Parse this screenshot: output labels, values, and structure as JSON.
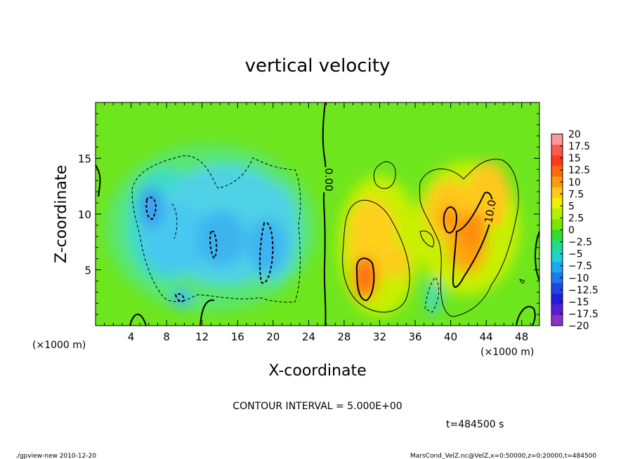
{
  "chart_data": {
    "type": "heatmap",
    "title": "vertical velocity",
    "xlabel": "X-coordinate",
    "ylabel": "Z-coordinate",
    "x_unit": "(×1000 m)",
    "y_unit": "(×1000 m)",
    "xlim": [
      0,
      50
    ],
    "ylim": [
      0,
      20
    ],
    "x_ticks": [
      "4",
      "8",
      "12",
      "16",
      "20",
      "24",
      "28",
      "32",
      "36",
      "40",
      "44",
      "48"
    ],
    "y_ticks": [
      "5",
      "10",
      "15"
    ],
    "colorbar": {
      "labels": [
        "20",
        "17.5",
        "15",
        "12.5",
        "10",
        "7.5",
        "5",
        "2.5",
        "0",
        "-2.5",
        "-5",
        "-7.5",
        "-10",
        "-12.5",
        "-15",
        "-17.5",
        "-20"
      ],
      "colors": [
        "#ff9a9a",
        "#ff5a50",
        "#ff3a1e",
        "#ff6a0a",
        "#ff9a0a",
        "#ffc81e",
        "#f0f000",
        "#b4f000",
        "#78e600",
        "#32dc32",
        "#1edc8c",
        "#1ed2d2",
        "#1eaaf0",
        "#1e78f0",
        "#1e46e6",
        "#1e1edc",
        "#5a1ed2",
        "#8c32c8"
      ]
    },
    "contour_labels": [
      "0.00",
      "10.0"
    ],
    "contour_interval_text": "CONTOUR INTERVAL = 5.000E+00",
    "time_text": "t=484500 s",
    "footer_left": "./gpview-new  2010-12-20",
    "footer_right": "MarsCond_VelZ.nc@VelZ,x=0:50000,z=0:20000,t=484500",
    "features": [
      {
        "kind": "downdraft",
        "x": 6.4,
        "z": 10.7,
        "value": -10
      },
      {
        "kind": "downdraft",
        "x": 13.5,
        "z": 7.5,
        "value": -10
      },
      {
        "kind": "downdraft",
        "x": 19.0,
        "z": 6.0,
        "value": -10
      },
      {
        "kind": "updraft",
        "x": 30.0,
        "z": 4.3,
        "value": 15
      },
      {
        "kind": "updraft",
        "x": 40.5,
        "z": 9.5,
        "value": 12.5
      },
      {
        "kind": "updraft",
        "x": 42.5,
        "z": 7.0,
        "value": 12.5
      },
      {
        "kind": "downdraft",
        "x": 38.5,
        "z": 2.5,
        "value": -5
      }
    ]
  }
}
